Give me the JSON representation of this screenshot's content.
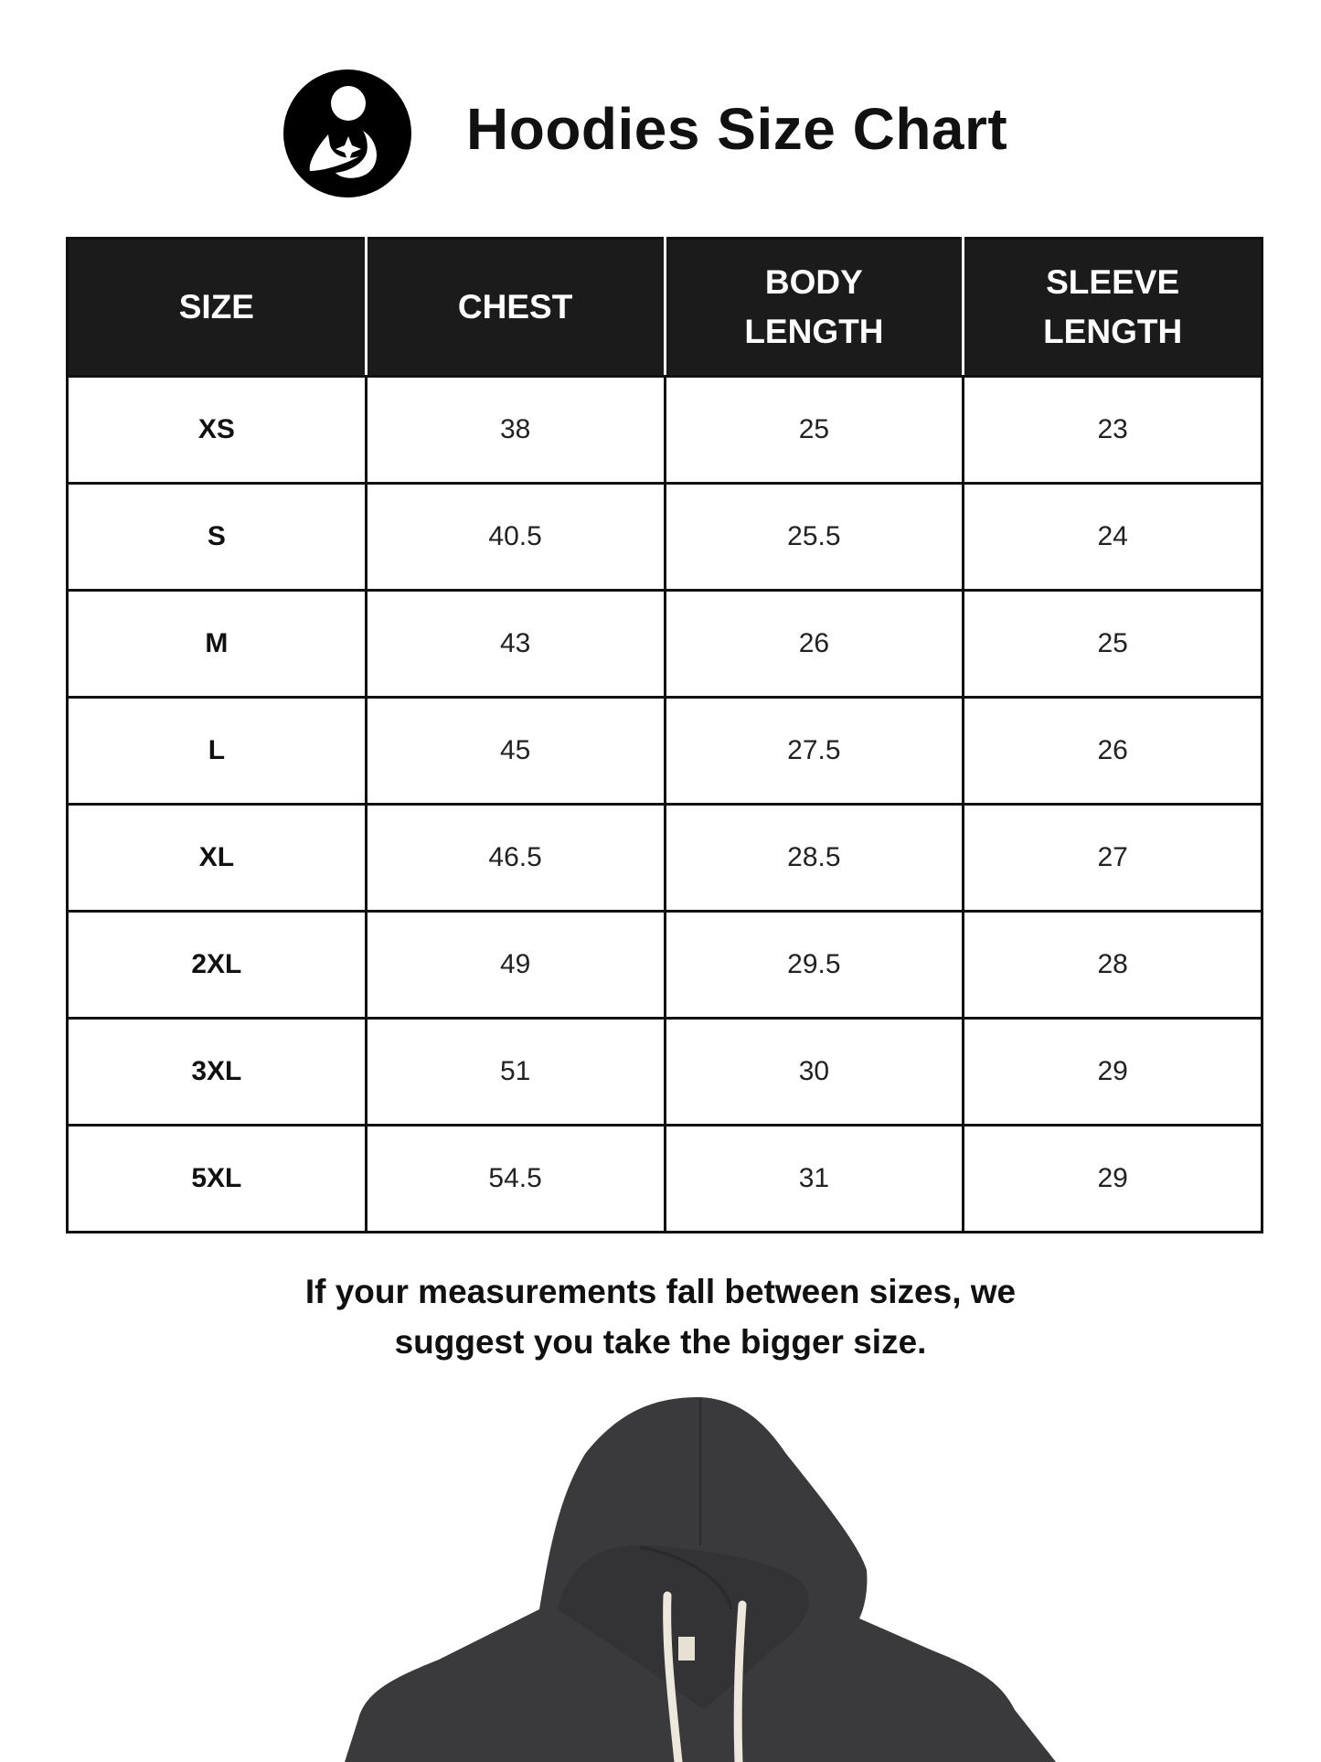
{
  "header": {
    "title": "Hoodies Size Chart",
    "logo_icon": "mother-child-circle-logo"
  },
  "table": {
    "columns": [
      "SIZE",
      "CHEST",
      "BODY LENGTH",
      "SLEEVE LENGTH"
    ],
    "rows": [
      [
        "XS",
        "38",
        "25",
        "23"
      ],
      [
        "S",
        "40.5",
        "25.5",
        "24"
      ],
      [
        "M",
        "43",
        "26",
        "25"
      ],
      [
        "L",
        "45",
        "27.5",
        "26"
      ],
      [
        "XL",
        "46.5",
        "28.5",
        "27"
      ],
      [
        "2XL",
        "49",
        "29.5",
        "28"
      ],
      [
        "3XL",
        "51",
        "30",
        "29"
      ],
      [
        "5XL",
        "54.5",
        "31",
        "29"
      ]
    ]
  },
  "note": {
    "line1": "If your measurements fall between sizes, we",
    "line2": "suggest you take the bigger size."
  },
  "colors": {
    "header_bg": "#1b1b1b",
    "hoodie": "#3a3a3c",
    "drawstring": "#ece8dc"
  }
}
